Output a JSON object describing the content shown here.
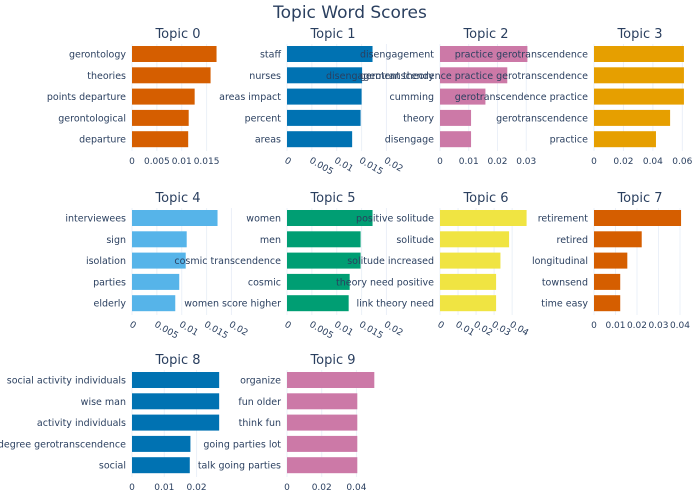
{
  "chart_data": {
    "type": "bar",
    "orientation": "horizontal",
    "title": "Topic Word Scores",
    "grid": true,
    "subplots": [
      {
        "title": "Topic 0",
        "color": "#D55E00",
        "categories": [
          "gerontology",
          "theories",
          "points departure",
          "gerontological",
          "departure"
        ],
        "values": [
          0.017,
          0.0158,
          0.0126,
          0.0114,
          0.0113
        ],
        "xlim": [
          0,
          0.0185
        ],
        "ticks": [
          0,
          0.005,
          0.01,
          0.015
        ],
        "tick_labels": [
          "0",
          "0.005",
          "0.01",
          "0.015"
        ],
        "tick_rotate": false
      },
      {
        "title": "Topic 1",
        "color": "#0072B2",
        "categories": [
          "staff",
          "nurses",
          "areas impact",
          "percent",
          "areas"
        ],
        "values": [
          0.0172,
          0.0151,
          0.015,
          0.0148,
          0.0131
        ],
        "xlim": [
          0,
          0.0185
        ],
        "ticks": [
          0,
          0.005,
          0.01,
          0.015,
          0.02
        ],
        "tick_labels": [
          "0",
          "0.005",
          "0.01",
          "0.015",
          "0.02"
        ],
        "tick_rotate": true
      },
      {
        "title": "Topic 2",
        "color": "#CC79A7",
        "categories": [
          "disengagement",
          "disengagement theory",
          "cumming",
          "theory",
          "disengage"
        ],
        "values": [
          0.0304,
          0.0234,
          0.0158,
          0.0108,
          0.0108
        ],
        "xlim": [
          0,
          0.032
        ],
        "ticks": [
          0,
          0.01,
          0.02,
          0.03
        ],
        "tick_labels": [
          "0",
          "0.01",
          "0.02",
          "0.03"
        ],
        "tick_rotate": false
      },
      {
        "title": "Topic 3",
        "color": "#E69F00",
        "categories": [
          "practice gerotranscendence",
          "gerotranscendence practice gerotranscendence",
          "gerotranscendence practice",
          "gerotranscendence",
          "practice"
        ],
        "values": [
          0.0611,
          0.0611,
          0.0611,
          0.0517,
          0.0421
        ],
        "xlim": [
          0,
          0.0625
        ],
        "ticks": [
          0,
          0.02,
          0.04,
          0.06
        ],
        "tick_labels": [
          "0",
          "0.02",
          "0.04",
          "0.06"
        ],
        "tick_rotate": false
      },
      {
        "title": "Topic 4",
        "color": "#56B4E9",
        "categories": [
          "interviewees",
          "sign",
          "isolation",
          "parties",
          "elderly"
        ],
        "values": [
          0.0172,
          0.011,
          0.0108,
          0.0095,
          0.0087
        ],
        "xlim": [
          0,
          0.0185
        ],
        "ticks": [
          0,
          0.005,
          0.01,
          0.015,
          0.02
        ],
        "tick_labels": [
          "0",
          "0.005",
          "0.01",
          "0.015",
          "0.02"
        ],
        "tick_rotate": true
      },
      {
        "title": "Topic 5",
        "color": "#009E73",
        "categories": [
          "women",
          "men",
          "cosmic transcendence",
          "cosmic",
          "women score higher"
        ],
        "values": [
          0.0172,
          0.0148,
          0.0148,
          0.0126,
          0.0124
        ],
        "xlim": [
          0,
          0.0185
        ],
        "ticks": [
          0,
          0.005,
          0.01,
          0.015,
          0.02
        ],
        "tick_labels": [
          "0",
          "0.005",
          "0.01",
          "0.015",
          "0.02"
        ],
        "tick_rotate": true
      },
      {
        "title": "Topic 6",
        "color": "#F0E442",
        "categories": [
          "positive solitude",
          "solitude",
          "solitude increased",
          "theory need positive",
          "link theory need"
        ],
        "values": [
          0.048,
          0.0383,
          0.0335,
          0.0311,
          0.0311
        ],
        "xlim": [
          0,
          0.051
        ],
        "ticks": [
          0,
          0.01,
          0.02,
          0.03,
          0.04
        ],
        "tick_labels": [
          "0",
          "0.01",
          "0.02",
          "0.03",
          "0.04"
        ],
        "tick_rotate": true
      },
      {
        "title": "Topic 7",
        "color": "#D55E00",
        "categories": [
          "retirement",
          "retired",
          "longitudinal",
          "townsend",
          "time easy"
        ],
        "values": [
          0.0405,
          0.0222,
          0.0155,
          0.0122,
          0.0122
        ],
        "xlim": [
          0,
          0.0428
        ],
        "ticks": [
          0,
          0.01,
          0.02,
          0.03,
          0.04
        ],
        "tick_labels": [
          "0",
          "0.01",
          "0.02",
          "0.03",
          "0.04"
        ],
        "tick_rotate": false
      },
      {
        "title": "Topic 8",
        "color": "#0072B2",
        "categories": [
          "social activity individuals",
          "wise man",
          "activity individuals",
          "degree gerotranscendence",
          "social"
        ],
        "values": [
          0.027,
          0.027,
          0.027,
          0.0181,
          0.0179
        ],
        "xlim": [
          0,
          0.0285
        ],
        "ticks": [
          0,
          0.01,
          0.02
        ],
        "tick_labels": [
          "0",
          "0.01",
          "0.02"
        ],
        "tick_rotate": false
      },
      {
        "title": "Topic 9",
        "color": "#CC79A7",
        "categories": [
          "organize",
          "fun older",
          "think fun",
          "going parties lot",
          "talk going parties"
        ],
        "values": [
          0.0503,
          0.0405,
          0.0405,
          0.0405,
          0.0405
        ],
        "xlim": [
          0,
          0.053
        ],
        "ticks": [
          0,
          0.02,
          0.04
        ],
        "tick_labels": [
          "0",
          "0.02",
          "0.04"
        ],
        "tick_rotate": false
      }
    ]
  }
}
